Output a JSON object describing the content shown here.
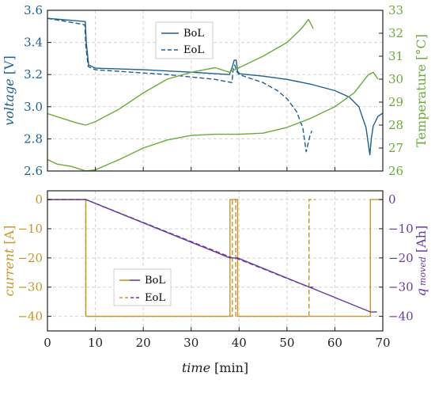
{
  "colors": {
    "voltage": "#1f5f8b",
    "temperature": "#6aaa3a",
    "current": "#c8962a",
    "charge": "#6a3d9a",
    "grid": "#d4d4d4"
  },
  "chart_data": [
    {
      "type": "line",
      "panel": "top",
      "xlim": [
        0,
        70
      ],
      "x_ticks": [
        0,
        10,
        20,
        30,
        40,
        50,
        60,
        70
      ],
      "left_axis": {
        "label_main": "voltage",
        "label_unit": "[V]",
        "ylim": [
          2.6,
          3.6
        ],
        "ticks": [
          "3.6",
          "3.4",
          "3.2",
          "3.0",
          "2.8",
          "2.6"
        ]
      },
      "right_axis": {
        "label": "Temperature [°C]",
        "ylim": [
          26,
          33
        ],
        "ticks": [
          "33",
          "32",
          "31",
          "30",
          "29",
          "28",
          "27",
          "26"
        ]
      },
      "legend": {
        "position": "top-center",
        "entries": [
          "BoL",
          "EoL"
        ]
      },
      "grid": true,
      "series": [
        {
          "name": "BoL",
          "quantity": "voltage",
          "axis": "left",
          "style": "solid",
          "x": [
            0,
            4,
            7.9,
            8.1,
            8.6,
            10,
            15,
            20,
            30,
            38,
            38.6,
            39.0,
            39.4,
            39.7,
            40.1,
            45,
            50,
            55,
            60,
            63,
            65,
            66.5,
            67.3,
            67.6,
            68.0,
            69,
            70
          ],
          "y": [
            3.55,
            3.54,
            3.53,
            3.4,
            3.26,
            3.24,
            3.235,
            3.23,
            3.215,
            3.2,
            3.25,
            3.29,
            3.29,
            3.22,
            3.205,
            3.19,
            3.17,
            3.14,
            3.1,
            3.06,
            3.0,
            2.87,
            2.7,
            2.8,
            2.88,
            2.94,
            2.96
          ]
        },
        {
          "name": "EoL",
          "quantity": "voltage",
          "axis": "left",
          "style": "dashed",
          "x": [
            0,
            4,
            7.8,
            8.0,
            8.5,
            10,
            15,
            20,
            25,
            30,
            35,
            38.5,
            38.8,
            39.1,
            39.5,
            40,
            42,
            45,
            48,
            50,
            52,
            53.3,
            54.0,
            54.4,
            54.8,
            55.2
          ],
          "y": [
            3.55,
            3.53,
            3.51,
            3.38,
            3.25,
            3.23,
            3.22,
            3.21,
            3.2,
            3.185,
            3.17,
            3.15,
            3.24,
            3.26,
            3.22,
            3.2,
            3.18,
            3.15,
            3.1,
            3.05,
            2.97,
            2.87,
            2.72,
            2.77,
            2.82,
            2.85
          ]
        },
        {
          "name": "BoL",
          "quantity": "temperature",
          "axis": "right",
          "style": "solid",
          "x": [
            0,
            2,
            5,
            8,
            10,
            15,
            20,
            25,
            30,
            35,
            40,
            45,
            50,
            55,
            60,
            64,
            67,
            68,
            69
          ],
          "y": [
            26.5,
            26.3,
            26.2,
            26.0,
            26.05,
            26.5,
            27.0,
            27.35,
            27.55,
            27.6,
            27.6,
            27.65,
            27.9,
            28.3,
            28.8,
            29.4,
            30.2,
            30.3,
            30.0
          ]
        },
        {
          "name": "EoL",
          "quantity": "temperature",
          "axis": "right",
          "style": "solid",
          "x": [
            0,
            3,
            6,
            8,
            10,
            15,
            20,
            25,
            30,
            35,
            38,
            41,
            45,
            50,
            53,
            54.5,
            55.5
          ],
          "y": [
            28.5,
            28.3,
            28.1,
            28.0,
            28.15,
            28.7,
            29.4,
            30.0,
            30.3,
            30.5,
            30.3,
            30.6,
            31.0,
            31.6,
            32.2,
            32.6,
            32.2
          ]
        }
      ]
    },
    {
      "type": "line",
      "panel": "bottom",
      "xlabel_main": "time",
      "xlabel_unit": "[min]",
      "xlim": [
        0,
        70
      ],
      "x_ticks": [
        "0",
        "10",
        "20",
        "30",
        "40",
        "50",
        "60",
        "70"
      ],
      "left_axis": {
        "label_main": "current",
        "label_unit": "[A]",
        "ylim": [
          -45,
          3
        ],
        "ticks": [
          "0",
          "−10",
          "−20",
          "−30",
          "−40"
        ]
      },
      "right_axis": {
        "label_main": "q",
        "label_sub": "moved",
        "label_unit": "[Ah]",
        "ylim": [
          -45,
          3
        ],
        "ticks": [
          "0",
          "−10",
          "−20",
          "−30",
          "−40"
        ]
      },
      "legend": {
        "position": "lower-left",
        "entries": [
          "BoL",
          "EoL"
        ]
      },
      "grid": true,
      "series": [
        {
          "name": "BoL",
          "quantity": "current",
          "axis": "left",
          "style": "solid",
          "x": [
            0,
            8,
            8,
            38.1,
            38.1,
            39.7,
            39.7,
            67.4,
            67.4,
            70
          ],
          "y": [
            0,
            0,
            -40,
            -40,
            0,
            0,
            -40,
            -40,
            0,
            0
          ]
        },
        {
          "name": "EoL",
          "quantity": "current",
          "axis": "left",
          "style": "dashed",
          "x": [
            0,
            8,
            8,
            38.6,
            38.6,
            39.3,
            39.3,
            54.6,
            54.6,
            56
          ],
          "y": [
            0,
            0,
            -40,
            -40,
            0,
            0,
            -40,
            -40,
            0,
            0
          ]
        },
        {
          "name": "BoL",
          "quantity": "q moved",
          "axis": "right",
          "style": "solid",
          "x": [
            0,
            8,
            38.1,
            39.7,
            67.4,
            68.8
          ],
          "y": [
            0,
            0,
            -20,
            -20,
            -38.5,
            -38.5
          ]
        },
        {
          "name": "EoL",
          "quantity": "q moved",
          "axis": "right",
          "style": "dashed",
          "x": [
            0,
            8,
            38.6,
            39.3,
            54.6,
            55.8
          ],
          "y": [
            0,
            0,
            -20,
            -20,
            -30,
            -30
          ]
        }
      ]
    }
  ]
}
